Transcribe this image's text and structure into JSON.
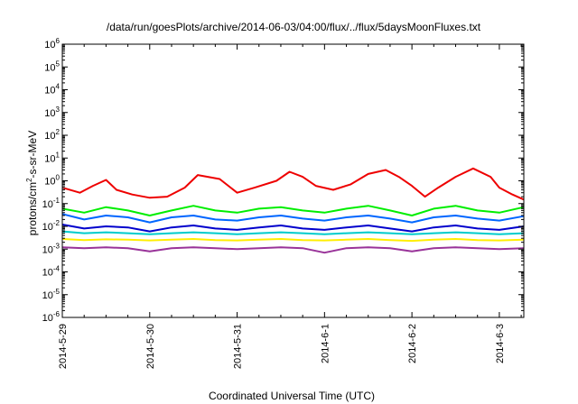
{
  "chart_data": {
    "type": "line",
    "title": "/data/run/goesPlots/archive/2014-06-03/04:00/flux/../flux/5daysMoonFluxes.txt",
    "xlabel": "Coordinated Universal Time (UTC)",
    "ylabel": {
      "base": "protons/cm",
      "sup": "2",
      "rest": "-s-sr-MeV"
    },
    "y_scale": "log",
    "ylim_exp": [
      -6,
      6
    ],
    "y_tick_labels": [
      {
        "exp": -6,
        "base": "10",
        "sup": "-6"
      },
      {
        "exp": -5,
        "base": "10",
        "sup": "-5"
      },
      {
        "exp": -4,
        "base": "10",
        "sup": "-4"
      },
      {
        "exp": -3,
        "base": "10",
        "sup": "-3"
      },
      {
        "exp": -2,
        "base": "10",
        "sup": "-2"
      },
      {
        "exp": -1,
        "base": "10",
        "sup": "-1"
      },
      {
        "exp": 0,
        "base": "10",
        "sup": "0"
      },
      {
        "exp": 1,
        "base": "10",
        "sup": "1"
      },
      {
        "exp": 2,
        "base": "10",
        "sup": "2"
      },
      {
        "exp": 3,
        "base": "10",
        "sup": "3"
      },
      {
        "exp": 4,
        "base": "10",
        "sup": "4"
      },
      {
        "exp": 5,
        "base": "10",
        "sup": "5"
      },
      {
        "exp": 6,
        "base": "10",
        "sup": "6"
      }
    ],
    "x_range_days": [
      0,
      5.28
    ],
    "x_tick_labels": [
      {
        "day": 0,
        "label": "2014-5-29"
      },
      {
        "day": 1,
        "label": "2014-5-30"
      },
      {
        "day": 2,
        "label": "2014-5-31"
      },
      {
        "day": 3,
        "label": "2014-6-1"
      },
      {
        "day": 4,
        "label": "2014-6-2"
      },
      {
        "day": 5,
        "label": "2014-6-3"
      }
    ],
    "grid": false,
    "legend": "none",
    "series": [
      {
        "color": "#ee0000",
        "x": [
          0,
          0.2,
          0.35,
          0.5,
          0.62,
          0.8,
          1.0,
          1.2,
          1.4,
          1.55,
          1.8,
          2.0,
          2.2,
          2.45,
          2.6,
          2.75,
          2.9,
          3.1,
          3.3,
          3.5,
          3.7,
          3.85,
          4.0,
          4.15,
          4.3,
          4.5,
          4.7,
          4.9,
          5.0,
          5.15,
          5.28
        ],
        "values": [
          0.5,
          0.3,
          0.6,
          1.1,
          0.4,
          0.25,
          0.18,
          0.2,
          0.5,
          1.8,
          1.2,
          0.3,
          0.5,
          1.0,
          2.5,
          1.5,
          0.6,
          0.4,
          0.7,
          2.0,
          3.0,
          1.5,
          0.6,
          0.2,
          0.5,
          1.5,
          3.5,
          1.5,
          0.5,
          0.25,
          0.15
        ]
      },
      {
        "color": "#00ee00",
        "x": [
          0,
          0.25,
          0.5,
          0.75,
          1.0,
          1.25,
          1.5,
          1.75,
          2.0,
          2.25,
          2.5,
          2.75,
          3.0,
          3.25,
          3.5,
          3.75,
          4.0,
          4.25,
          4.5,
          4.75,
          5.0,
          5.28
        ],
        "values": [
          0.06,
          0.04,
          0.07,
          0.05,
          0.03,
          0.05,
          0.08,
          0.05,
          0.04,
          0.06,
          0.07,
          0.05,
          0.04,
          0.06,
          0.08,
          0.05,
          0.03,
          0.06,
          0.08,
          0.05,
          0.04,
          0.07
        ]
      },
      {
        "color": "#0066ff",
        "x": [
          0,
          0.25,
          0.5,
          0.75,
          1.0,
          1.25,
          1.5,
          1.75,
          2.0,
          2.25,
          2.5,
          2.75,
          3.0,
          3.25,
          3.5,
          3.75,
          4.0,
          4.25,
          4.5,
          4.75,
          5.0,
          5.28
        ],
        "values": [
          0.035,
          0.02,
          0.03,
          0.025,
          0.015,
          0.025,
          0.03,
          0.02,
          0.018,
          0.025,
          0.03,
          0.022,
          0.018,
          0.025,
          0.03,
          0.022,
          0.015,
          0.025,
          0.03,
          0.022,
          0.018,
          0.028
        ]
      },
      {
        "color": "#0000cc",
        "x": [
          0,
          0.25,
          0.5,
          0.75,
          1.0,
          1.25,
          1.5,
          1.75,
          2.0,
          2.25,
          2.5,
          2.75,
          3.0,
          3.25,
          3.5,
          3.75,
          4.0,
          4.25,
          4.5,
          4.75,
          5.0,
          5.28
        ],
        "values": [
          0.012,
          0.008,
          0.01,
          0.009,
          0.006,
          0.009,
          0.011,
          0.008,
          0.007,
          0.009,
          0.011,
          0.008,
          0.007,
          0.009,
          0.011,
          0.008,
          0.006,
          0.009,
          0.011,
          0.008,
          0.007,
          0.01
        ]
      },
      {
        "color": "#00cccc",
        "x": [
          0,
          0.25,
          0.5,
          0.75,
          1.0,
          1.25,
          1.5,
          1.75,
          2.0,
          2.25,
          2.5,
          2.75,
          3.0,
          3.25,
          3.5,
          3.75,
          4.0,
          4.25,
          4.5,
          4.75,
          5.0,
          5.28
        ],
        "values": [
          0.006,
          0.005,
          0.0055,
          0.005,
          0.0045,
          0.005,
          0.0055,
          0.005,
          0.0045,
          0.005,
          0.0055,
          0.005,
          0.0045,
          0.005,
          0.0055,
          0.005,
          0.0045,
          0.005,
          0.0055,
          0.005,
          0.0045,
          0.005
        ]
      },
      {
        "color": "#ffee00",
        "x": [
          0,
          0.25,
          0.5,
          0.75,
          1.0,
          1.25,
          1.5,
          1.75,
          2.0,
          2.25,
          2.5,
          2.75,
          3.0,
          3.25,
          3.5,
          3.75,
          4.0,
          4.25,
          4.5,
          4.75,
          5.0,
          5.28
        ],
        "values": [
          0.0028,
          0.0025,
          0.0027,
          0.0026,
          0.0024,
          0.0026,
          0.0028,
          0.0025,
          0.0024,
          0.0026,
          0.0028,
          0.0025,
          0.0024,
          0.0026,
          0.0028,
          0.0025,
          0.0023,
          0.0026,
          0.0028,
          0.0025,
          0.0024,
          0.0026
        ]
      },
      {
        "color": "#993399",
        "x": [
          0,
          0.25,
          0.5,
          0.75,
          1.0,
          1.25,
          1.5,
          1.75,
          2.0,
          2.25,
          2.5,
          2.75,
          3.0,
          3.25,
          3.5,
          3.75,
          4.0,
          4.25,
          4.5,
          4.75,
          5.0,
          5.28
        ],
        "values": [
          0.0012,
          0.0011,
          0.0012,
          0.0011,
          0.0008,
          0.0011,
          0.0012,
          0.0011,
          0.001,
          0.0011,
          0.0012,
          0.0011,
          0.0007,
          0.0011,
          0.0012,
          0.0011,
          0.0008,
          0.0011,
          0.0012,
          0.0011,
          0.001,
          0.0011
        ]
      }
    ]
  }
}
